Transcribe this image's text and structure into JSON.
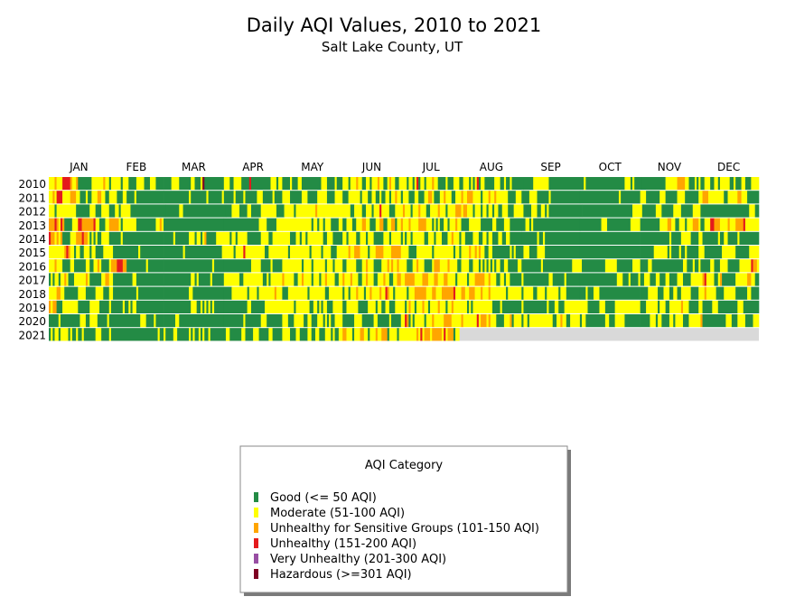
{
  "chart_data": {
    "type": "heatmap",
    "title": "Daily AQI Values, 2010 to 2021",
    "subtitle": "Salt Lake County, UT",
    "xlabel": "",
    "ylabel": "",
    "months": [
      "JAN",
      "FEB",
      "MAR",
      "APR",
      "MAY",
      "JUN",
      "JUL",
      "AUG",
      "SEP",
      "OCT",
      "NOV",
      "DEC"
    ],
    "years": [
      "2010",
      "2011",
      "2012",
      "2013",
      "2014",
      "2015",
      "2016",
      "2017",
      "2018",
      "2019",
      "2020",
      "2021"
    ],
    "encoding_note": "Run-length category codes per day: G=Good, M=Moderate, S=USG, U=Unhealthy, V=Very Unhealthy, H=Hazardous",
    "days": {
      "2010": "M3 S1 M3 U4 S1 M2 S1 G7 M6 S1 M2 G1 M5 G1 M3 G4 M4 G3 M3 G4 G4 M4 G6 M2 G3 M1 H1 G10 M3 G2 M4 G4 U1 G10 M3 G1 M2 G4 M1 G3 M2 G10 M3 G4 M1 G3 M3 G1 M3 S1 M2 G2 M2 G1 M3 S1 M2 G2 M1 S1 M2 G2 M1 M3 G1 M2 G1 M1 U1 G1 M2 G1 M3 S1 M2 G4 M1 G3 M3 G2 M3 G1 M1 G1 M1 U1 G1 M2 G5 M3 G2 M1 G2 M1 G6 G5 M8 G17 G1 M1 G20 M3 G1 M1 G4 G12 M6 S4 M2 G3 M1 G1 M1 G2 M3 G2 M2 G1 M5 G2 M1 G3 M2 G3 M5",
      "2011": "M2 S1 M1 U3 M4 S3 M2 G3 M1 G2 M3 S2 M2 G2 M4 G3 M2 G4 M1 G14 G13 M1 G8 M1 G7 M1 G5 M1 G4 M1 G6 M3 G5 M1 G4 M4 G6 M3 G5 M5 G4 M4 G3 M6 G1 M3 G2 M2 G2 M1 G2 M2 G1 M2 S1 M2 G1 M3 G3 M2 G3 M2 S2 M1 G3 M2 S1 M3 G2 M3 S1 M2 S3 M4 G1 M3 S1 M2 S1 M6 G4 M3 G4 M4 G6 M1 G15 G20 M1 G10 M3 G7 M3 G6 M4 G7 M2 S3 M8 G2 M5 S2 M3 G6",
      "2012": "M3 G1 M10 G7 M3 G3 M4 G3 M2 G1 M5 G18 G7 M2 G22 G3 M4 G4 M2 G5 M8 G4 M5 G1 M10 S1 M14 M3 G2 M4 G2 M3 G1 M3 U1 M4 G3 M4 S1 M3 G1 M3 S1 M3 G2 M4 S1 M3 G1 M4 S3 M1 S2 M3 G1 M3 G1 M2 G1 M2 G1 M2 G2 M3 G3 M5 G4 M3 G2 M2 G1 M1 G17 G26 M5 G7 M3 G6 M4 G6 M4 G25 M3 G3",
      "2013": "S3 U1 S1 M1 U1 S1 G4 M3 U2 S6 U1 M2 G3 M2 S5 M1 G1 M7 G10 M2 S1 M1 G31 G18 M4 G5 M3 M15 G1 M2 G1 M2 G1 M3 G4 M2 G2 M3 G2 M3 S2 M2 G3 M2 S2 G2 M2 S2 G1 M2 S1 M3 S1 M4 S4 M3 G1 M1 G1 M1 G2 M2 G1 M3 S1 M2 G4 M6 G6 M2 G4 M3 G6 G2 M2 G1 M1 G24 G11 M3 G12 M5 G10 M4 S2 M2 G2 M3 G1 M3 S3 M1 G2 M3 U2 S3 M4 S1 M3 S4 U1 M7",
      "2014": "U1 S2 M1 S1 M1 S1 G4 M3 S3 U1 S2 M1 G1 M1 G1 M1 G2 M4 G6 M1 G21 G5 M1 G7 M3 G1 M2 G1 M1 S1 G5 M4 M3 G1 M2 G1 M5 G7 M4 G2 M5 M4 G3 M2 G1 M2 G1 M8 G2 M3 G5 M2 G1 M4 G2 M3 G1 M3 G5 M3 G1 M5 G1 M1 G1 M2 G1 M6 G2 M3 G1 M3 G3 M2 S1 M3 G1 M2 G4 M3 G2 M2 G1 M2 G3 M2 G2 M2 G6 G8 M1 G2 M1 G18 G31 G15 M1 G5 M5 G4 M2 G8 M1 G2 M2 G5 M1 G10",
      "2015": "M8 S1 U1 S1 M2 G1 M2 G2 M3 G1 M2 G4 M3 M2 G13 M1 G12 G10 M1 G19 M1 M5 G1 M4 U1 M10 G2 M7 M3 G1 M10 G1 M5 G1 M4 G3 M3 M3 S1 M2 S3 M4 G1 M3 S4 M4 S5 M4 G4 M8 G1 M10 G1 M2 G1 M4 S1 M2 S1 M1 S1 M2 G2 M2 G9 M1 G1 M1 G3 G1 M3 G4 M4 G18 G31 G7 M7 G1 M1 G4 M1 G2 M1 G6 M3 G9 M7 G7 M5",
      "2016": "M3 S1 M3 G4 M2 G6 M2 G2 M2 S1 M1 G4 M1 S3 U3 S2 G10 M1 G8 G25 M1 G5 G14 M5 G5 M1 G5 M10 G1 M4 G1 M6 G1 M3 G1 M4 G2 M5 G3 M2 S1 M3 G4 M3 S1 M1 S1 M2 S1 M1 M3 G3 M2 S1 M3 G4 M1 S3 M4 S1 M4 G2 M4 G2 M3 G1 M1 G1 M1 G1 M1 G1 M1 G1 M2 G2 M2 G5 M2 G10 M1 G15 M4 M1 G12 M6 G8 M4 G4 M2 G16 M2 G3 M1 G2 M1 G5 M2 G3 M4 G6 M6 U1 S2 M2",
      "2017": "G1 M1 G1 M2 G1 M2 S1 M1 G3 M6 S1 M1 G6 M2 S2 M2 G10 M2 G14 G14 M2 G1 M1 G6 M1 G6 M8 G2 M10 G2 M1 G1 M6 S1 M5 G2 M2 S1 M4 G1 M3 G1 M2 S1 M4 G2 M2 S1 M3 S1 M3 G2 M2 S1 M3 G2 M3 S1 M2 G2 M2 S2 M2 S5 M4 S3 M3 S2 M3 S2 M4 G1 M2 M3 G1 M3 S5 M2 S1 M3 G2 M2 G1 M2 G6 M1 G13 M2 G6 M1 G7 G19 M3 G3 M1 G4 M1 G2 M3 G3 M2 G3 M2 G4 M3 G4 M4 M2 S1 U1 M4 G2 M1 S1 G7 M6 S2 M2 G2",
      "2018": "M4 S2 M2 G7 M4 G5 M4 G3 M2 G12 M1 G13 G13 M2 G16 G4 M8 G1 M4 G1 M8 S1 M3 G3 M10 G1 M8 G2 M7 G1 M2 G1 M3 S1 M3 G1 M2 S1 M4 S1 M2 U1 S1 M2 G1 M3 M3 G1 M3 S6 M3 S2 M3 S6 U1 M3 S2 M2 S3 M3 S1 M3 S1 M8 G1 M7 G1 M5 G2 M4 G1 M6 G1 M3 G7 G3 M1 G3 M3 G21 G4 M5 G3 M3 G2 M2 G2 M5 G4 M3 S1 M5 G4 M6 G6 M2 G4",
      "2019": "S1 M1 S2 G3 M8 G6 M5 G5 M1 G6 M1 G2 M1 G1 M2 G14 G14 M3 G2 M1 G1 M1 G1 M1 G1 M1 G5 G12 M2 G7 M9 M6 G1 M7 G2 M2 G1 M1 G1 M2 G3 M5 G2 M6 G5 M4 G1 M2 G2 M2 G3 M3 M2 G1 M1 S1 M2 G1 M3 S1 M2 G1 M4 S1 M3 G1 M2 S1 M4 M3 G1 M1 G1 M10 G4 M1 G10 M1 G12 M1 G3 M2 G3 M8 M4 G6 M3 G5 M13 G3 M6 G1 M3 G2 M6 S1 M3 G5 M2 G5 M3 G10 M3 G8",
      "2020": "G5 M1 G10 M3 G2 M4 G5 M1 G16 M3 G4 M1 G4 G6 M2 G23 G10 M1 G8 M3 G8 M3 G3 M5 G2 M2 G3 M3 G1 M1 G1 M1 G2 M4 G6 M4 G6 M2 G6 M1 G5 M2 U1 S1 G1 M1 G1 M5 G1 M3 S1 M5 S4 M5 S1 M7 U1 M1 S3 M1 S1 M3 G4 M3 S1 G1 M4 G1 M2 G1 M12 G2 M2 S1 M2 G2 M5 G1 M2 G10 M2 G3 M5 G8 G5 M3 G1 M2 G4 M2 G1 M4 G3 M5 M1 S1 G12 M3 G3 M4 G4 M3",
      "2021": "G1 M1 G1 M2 G1 M4 G1 M1 G2 M1 G2 M1 G6 M3 G4 M1 G24 M1 G2 M1 G4 M2 G6 M1 G1 M1 G2 M1 G1 M1 G2 M1 G7 G1 M2 G6 M2 G4 M3 G5 M2 G5 M4 G3 M2 G4 M2 G2 M2 G3 M3 G1 M1 G2 M2 S2 M3 G1 M3 S2 M2 G1 M3 S1 M2 S3 G1 M4 G1 M1 M8 S1 M1 U1 M1 S3 M1 S5 M1 U1 M1 S3 G1 M2"
    },
    "legend": {
      "title": "AQI Category",
      "placement": "bottom-center",
      "items": [
        {
          "code": "G",
          "label": "Good (<= 50 AQI)",
          "color": "#238b45"
        },
        {
          "code": "M",
          "label": "Moderate (51-100 AQI)",
          "color": "#ffff00"
        },
        {
          "code": "S",
          "label": "Unhealthy for Sensitive Groups (101-150 AQI)",
          "color": "#ffa500"
        },
        {
          "code": "U",
          "label": "Unhealthy (151-200 AQI)",
          "color": "#e41a1c"
        },
        {
          "code": "V",
          "label": "Very Unhealthy (201-300 AQI)",
          "color": "#984ea3"
        },
        {
          "code": "H",
          "label": "Hazardous (>=301 AQI)",
          "color": "#7e0023"
        }
      ]
    },
    "no_data_color": "#d9d9d9"
  }
}
